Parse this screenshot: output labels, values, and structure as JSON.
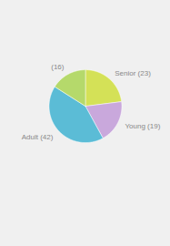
{
  "chart_data": {
    "type": "pie",
    "categories": [
      "Senior (23)",
      "Young (19)",
      "Adult (42)",
      "(16)"
    ],
    "values": [
      23,
      19,
      42,
      16
    ],
    "colors": [
      "#d4e157",
      "#c9a8dc",
      "#5bbcd6",
      "#b5d96b"
    ]
  }
}
